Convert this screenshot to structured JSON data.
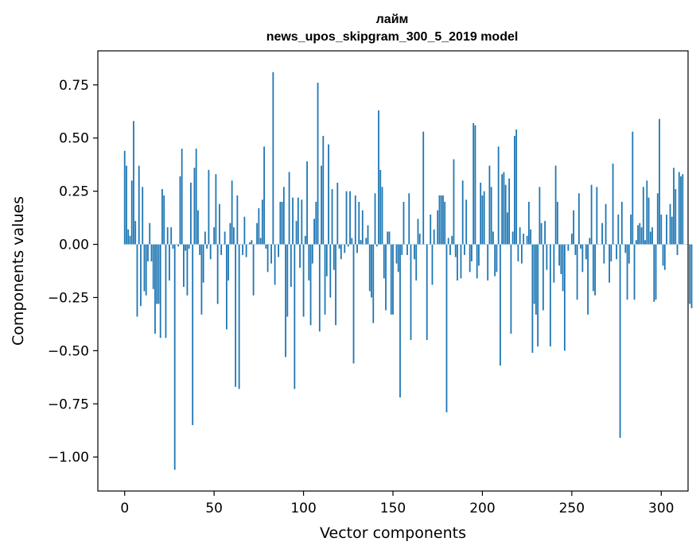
{
  "chart_data": {
    "type": "bar",
    "title": "лайм",
    "subtitle": "news_upos_skipgram_300_5_2019 model",
    "xlabel": "Vector components",
    "ylabel": "Components values",
    "xlim": [
      -15,
      315
    ],
    "ylim": [
      -1.16,
      0.91
    ],
    "xticks": [
      0,
      50,
      100,
      150,
      200,
      250,
      300
    ],
    "xtick_labels": [
      "0",
      "50",
      "100",
      "150",
      "200",
      "250",
      "300"
    ],
    "yticks": [
      0.75,
      0.5,
      0.25,
      0.0,
      -0.25,
      -0.5,
      -0.75,
      -1.0
    ],
    "ytick_labels": [
      "0.75",
      "0.50",
      "0.25",
      "0.00",
      "−0.25",
      "−0.50",
      "−0.75",
      "−1.00"
    ],
    "bar_color": "#1f77b4",
    "values": [
      0.44,
      0.37,
      0.07,
      0.04,
      0.3,
      0.58,
      0.11,
      -0.34,
      0.37,
      -0.29,
      0.27,
      -0.22,
      -0.24,
      -0.08,
      0.1,
      -0.08,
      -0.21,
      -0.42,
      -0.28,
      -0.28,
      -0.44,
      0.26,
      0.23,
      -0.44,
      0.08,
      -0.17,
      0.08,
      -0.02,
      -1.06,
      0.0,
      -0.01,
      0.32,
      0.45,
      -0.2,
      -0.03,
      -0.24,
      -0.02,
      0.29,
      -0.85,
      0.36,
      0.45,
      0.16,
      -0.05,
      -0.33,
      -0.18,
      0.06,
      -0.02,
      0.35,
      -0.07,
      0.0,
      0.08,
      0.33,
      -0.28,
      0.19,
      -0.05,
      0.0,
      0.06,
      -0.4,
      -0.17,
      0.1,
      0.3,
      0.08,
      -0.67,
      0.23,
      -0.68,
      0.0,
      -0.05,
      0.13,
      -0.06,
      0.0,
      0.01,
      0.02,
      -0.24,
      0.0,
      0.1,
      0.17,
      0.03,
      0.21,
      0.46,
      -0.02,
      -0.13,
      0.0,
      -0.09,
      0.81,
      -0.19,
      0.0,
      -0.06,
      0.2,
      0.2,
      0.27,
      -0.53,
      -0.34,
      0.34,
      -0.2,
      0.22,
      -0.68,
      0.11,
      0.22,
      -0.11,
      0.21,
      -0.34,
      0.04,
      0.39,
      -0.17,
      -0.38,
      -0.09,
      0.12,
      0.2,
      0.76,
      -0.41,
      0.37,
      0.51,
      -0.33,
      -0.15,
      0.47,
      -0.25,
      0.26,
      -0.12,
      -0.38,
      0.29,
      -0.02,
      -0.07,
      0.0,
      -0.04,
      0.25,
      -0.01,
      0.25,
      0.03,
      -0.56,
      0.23,
      -0.04,
      0.2,
      0.02,
      0.16,
      0.0,
      0.03,
      0.09,
      -0.22,
      -0.25,
      -0.37,
      0.24,
      -0.01,
      0.63,
      0.35,
      0.27,
      -0.16,
      -0.31,
      0.06,
      0.06,
      -0.33,
      -0.33,
      0.0,
      -0.09,
      -0.13,
      -0.72,
      -0.05,
      0.2,
      0.0,
      -0.05,
      0.24,
      -0.45,
      0.0,
      -0.07,
      -0.17,
      0.12,
      0.05,
      0.0,
      0.53,
      0.0,
      -0.45,
      0.0,
      0.14,
      -0.19,
      0.07,
      0.0,
      0.16,
      0.23,
      0.23,
      0.23,
      0.2,
      -0.79,
      0.03,
      -0.05,
      0.04,
      0.4,
      -0.06,
      -0.17,
      0.0,
      -0.16,
      0.3,
      -0.05,
      0.21,
      0.0,
      -0.13,
      -0.08,
      0.57,
      0.56,
      -0.16,
      -0.1,
      0.29,
      0.23,
      0.25,
      0.0,
      -0.17,
      0.37,
      0.27,
      0.06,
      -0.15,
      -0.13,
      0.46,
      -0.57,
      0.33,
      0.34,
      0.28,
      0.15,
      0.31,
      -0.42,
      0.06,
      0.51,
      0.54,
      -0.08,
      0.08,
      -0.09,
      0.05,
      0.0,
      0.04,
      0.2,
      0.07,
      -0.51,
      -0.28,
      -0.33,
      -0.48,
      0.27,
      0.1,
      -0.31,
      0.11,
      -0.12,
      0.0,
      -0.48,
      0.0,
      -0.18,
      0.37,
      0.2,
      -0.1,
      -0.14,
      -0.22,
      -0.5,
      0.0,
      -0.03,
      0.0,
      0.05,
      0.16,
      -0.05,
      -0.26,
      0.24,
      -0.02,
      -0.13,
      0.0,
      -0.07,
      -0.33,
      0.03,
      0.28,
      -0.22,
      -0.24,
      0.27,
      0.0,
      0.0,
      0.1,
      -0.09,
      0.19,
      0.0,
      -0.18,
      -0.08,
      0.38,
      0.0,
      -0.07,
      0.14,
      -0.91,
      0.2,
      0.0,
      -0.04,
      -0.26,
      -0.09,
      0.14,
      0.53,
      -0.26,
      0.02,
      0.09,
      0.1,
      0.08,
      0.27,
      0.02,
      0.3,
      0.22,
      0.06,
      0.08,
      -0.27,
      -0.26,
      0.24,
      0.59,
      0.14,
      -0.1,
      -0.12,
      0.14,
      0.0,
      0.19,
      0.13,
      0.36,
      0.26,
      -0.05,
      0.34,
      0.32,
      0.33,
      0.0,
      0.0,
      0.0,
      -0.28,
      -0.3
    ]
  }
}
